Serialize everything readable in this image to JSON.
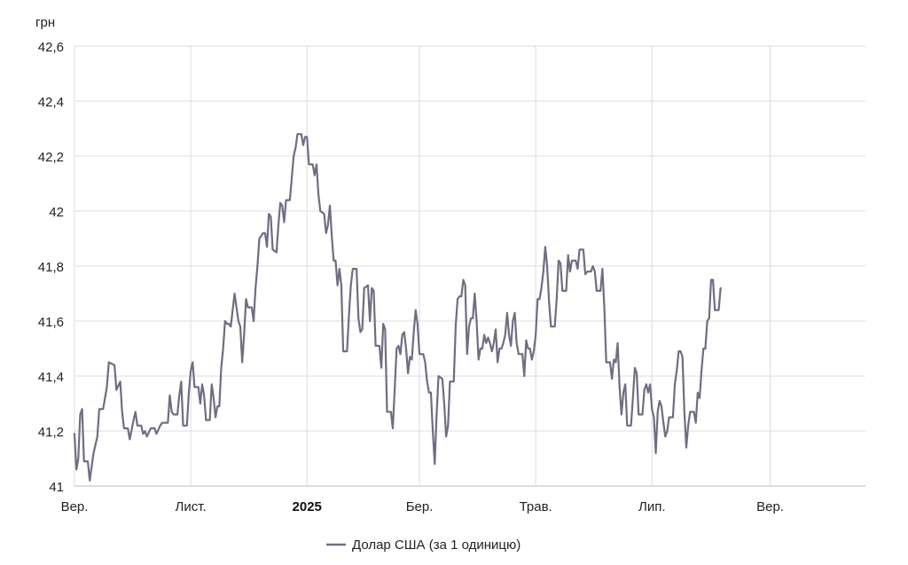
{
  "chart_data": {
    "type": "line",
    "title": "",
    "ylabel": "грн",
    "ylim": [
      41,
      42.6
    ],
    "y_ticks": [
      "41",
      "41,2",
      "41,4",
      "41,6",
      "41,8",
      "42",
      "42,2",
      "42,4",
      "42,6"
    ],
    "y_tick_values": [
      41,
      41.2,
      41.4,
      41.6,
      41.8,
      42,
      42.2,
      42.4,
      42.6
    ],
    "x_ticks": [
      {
        "label": "Вер.",
        "index": 0,
        "bold": false
      },
      {
        "label": "Лист.",
        "index": 61,
        "bold": false
      },
      {
        "label": "2025",
        "index": 122,
        "bold": true
      },
      {
        "label": "Бер.",
        "index": 181,
        "bold": false
      },
      {
        "label": "Трав.",
        "index": 242,
        "bold": false
      },
      {
        "label": "Лип.",
        "index": 303,
        "bold": false
      },
      {
        "label": "Вер.",
        "index": 365,
        "bold": false
      }
    ],
    "x_domain": [
      0,
      415
    ],
    "grid": true,
    "legend_position": "bottom-center",
    "colors": {
      "series": "#6e6e82",
      "grid": "#dcdcdc",
      "axis": "#bdbdbd"
    },
    "series": [
      {
        "name": "Долар США (за 1 одиницю)",
        "points": [
          [
            0,
            41.19
          ],
          [
            1,
            41.06
          ],
          [
            2,
            41.1
          ],
          [
            3,
            41.26
          ],
          [
            4,
            41.28
          ],
          [
            5,
            41.09
          ],
          [
            7,
            41.09
          ],
          [
            8,
            41.02
          ],
          [
            10,
            41.12
          ],
          [
            12,
            41.18
          ],
          [
            13,
            41.28
          ],
          [
            15,
            41.28
          ],
          [
            17,
            41.36
          ],
          [
            18,
            41.45
          ],
          [
            21,
            41.44
          ],
          [
            22,
            41.35
          ],
          [
            24,
            41.38
          ],
          [
            25,
            41.27
          ],
          [
            26,
            41.21
          ],
          [
            28,
            41.21
          ],
          [
            29,
            41.17
          ],
          [
            31,
            41.24
          ],
          [
            32,
            41.27
          ],
          [
            33,
            41.22
          ],
          [
            35,
            41.22
          ],
          [
            36,
            41.19
          ],
          [
            37,
            41.2
          ],
          [
            38,
            41.18
          ],
          [
            40,
            41.21
          ],
          [
            42,
            41.21
          ],
          [
            43,
            41.19
          ],
          [
            45,
            41.22
          ],
          [
            46,
            41.23
          ],
          [
            49,
            41.23
          ],
          [
            50,
            41.33
          ],
          [
            51,
            41.27
          ],
          [
            52,
            41.26
          ],
          [
            54,
            41.26
          ],
          [
            55,
            41.33
          ],
          [
            56,
            41.38
          ],
          [
            57,
            41.22
          ],
          [
            59,
            41.22
          ],
          [
            60,
            41.34
          ],
          [
            61,
            41.42
          ],
          [
            62,
            41.45
          ],
          [
            63,
            41.36
          ],
          [
            65,
            41.36
          ],
          [
            66,
            41.3
          ],
          [
            67,
            41.37
          ],
          [
            68,
            41.33
          ],
          [
            69,
            41.24
          ],
          [
            71,
            41.24
          ],
          [
            72,
            41.37
          ],
          [
            73,
            41.32
          ],
          [
            74,
            41.25
          ],
          [
            75,
            41.29
          ],
          [
            76,
            41.29
          ],
          [
            77,
            41.43
          ],
          [
            78,
            41.5
          ],
          [
            79,
            41.6
          ],
          [
            80,
            41.59
          ],
          [
            81,
            41.59
          ],
          [
            82,
            41.58
          ],
          [
            83,
            41.64
          ],
          [
            84,
            41.7
          ],
          [
            85,
            41.65
          ],
          [
            86,
            41.6
          ],
          [
            87,
            41.58
          ],
          [
            88,
            41.45
          ],
          [
            89,
            41.55
          ],
          [
            90,
            41.68
          ],
          [
            91,
            41.65
          ],
          [
            93,
            41.65
          ],
          [
            94,
            41.6
          ],
          [
            95,
            41.72
          ],
          [
            96,
            41.8
          ],
          [
            97,
            41.9
          ],
          [
            99,
            41.92
          ],
          [
            100,
            41.92
          ],
          [
            101,
            41.87
          ],
          [
            102,
            41.99
          ],
          [
            103,
            41.98
          ],
          [
            104,
            41.86
          ],
          [
            106,
            41.85
          ],
          [
            107,
            41.95
          ],
          [
            108,
            42.03
          ],
          [
            109,
            42.02
          ],
          [
            110,
            41.96
          ],
          [
            111,
            42.04
          ],
          [
            113,
            42.04
          ],
          [
            114,
            42.12
          ],
          [
            115,
            42.2
          ],
          [
            116,
            42.23
          ],
          [
            117,
            42.28
          ],
          [
            119,
            42.28
          ],
          [
            120,
            42.24
          ],
          [
            121,
            42.27
          ],
          [
            122,
            42.27
          ],
          [
            123,
            42.17
          ],
          [
            125,
            42.17
          ],
          [
            126,
            42.13
          ],
          [
            127,
            42.17
          ],
          [
            128,
            42.06
          ],
          [
            129,
            42.0
          ],
          [
            131,
            41.99
          ],
          [
            132,
            41.92
          ],
          [
            133,
            41.95
          ],
          [
            134,
            42.02
          ],
          [
            135,
            41.91
          ],
          [
            136,
            41.82
          ],
          [
            137,
            41.82
          ],
          [
            138,
            41.73
          ],
          [
            139,
            41.79
          ],
          [
            140,
            41.73
          ],
          [
            141,
            41.49
          ],
          [
            143,
            41.49
          ],
          [
            144,
            41.62
          ],
          [
            145,
            41.73
          ],
          [
            146,
            41.79
          ],
          [
            148,
            41.79
          ],
          [
            149,
            41.61
          ],
          [
            150,
            41.56
          ],
          [
            151,
            41.57
          ],
          [
            152,
            41.72
          ],
          [
            154,
            41.73
          ],
          [
            155,
            41.6
          ],
          [
            156,
            41.72
          ],
          [
            157,
            41.71
          ],
          [
            158,
            41.51
          ],
          [
            160,
            41.51
          ],
          [
            161,
            41.43
          ],
          [
            162,
            41.59
          ],
          [
            163,
            41.57
          ],
          [
            164,
            41.27
          ],
          [
            166,
            41.27
          ],
          [
            167,
            41.21
          ],
          [
            168,
            41.35
          ],
          [
            169,
            41.5
          ],
          [
            170,
            41.51
          ],
          [
            171,
            41.48
          ],
          [
            172,
            41.55
          ],
          [
            173,
            41.56
          ],
          [
            174,
            41.5
          ],
          [
            175,
            41.41
          ],
          [
            176,
            41.47
          ],
          [
            177,
            41.46
          ],
          [
            178,
            41.56
          ],
          [
            179,
            41.64
          ],
          [
            180,
            41.59
          ],
          [
            181,
            41.48
          ],
          [
            183,
            41.48
          ],
          [
            184,
            41.45
          ],
          [
            185,
            41.38
          ],
          [
            186,
            41.34
          ],
          [
            187,
            41.34
          ],
          [
            188,
            41.2
          ],
          [
            189,
            41.08
          ],
          [
            190,
            41.26
          ],
          [
            191,
            41.4
          ],
          [
            193,
            41.39
          ],
          [
            194,
            41.3
          ],
          [
            195,
            41.18
          ],
          [
            196,
            41.22
          ],
          [
            197,
            41.38
          ],
          [
            199,
            41.38
          ],
          [
            200,
            41.58
          ],
          [
            201,
            41.68
          ],
          [
            202,
            41.69
          ],
          [
            203,
            41.69
          ],
          [
            204,
            41.75
          ],
          [
            205,
            41.73
          ],
          [
            206,
            41.48
          ],
          [
            207,
            41.58
          ],
          [
            208,
            41.61
          ],
          [
            209,
            41.61
          ],
          [
            210,
            41.7
          ],
          [
            211,
            41.6
          ],
          [
            212,
            41.46
          ],
          [
            213,
            41.5
          ],
          [
            214,
            41.5
          ],
          [
            215,
            41.55
          ],
          [
            216,
            41.52
          ],
          [
            217,
            41.54
          ],
          [
            218,
            41.52
          ],
          [
            219,
            41.49
          ],
          [
            220,
            41.52
          ],
          [
            221,
            41.57
          ],
          [
            222,
            41.45
          ],
          [
            223,
            41.5
          ],
          [
            224,
            41.5
          ],
          [
            225,
            41.52
          ],
          [
            226,
            41.55
          ],
          [
            227,
            41.63
          ],
          [
            228,
            41.55
          ],
          [
            229,
            41.51
          ],
          [
            230,
            41.6
          ],
          [
            231,
            41.63
          ],
          [
            232,
            41.52
          ],
          [
            233,
            41.48
          ],
          [
            235,
            41.48
          ],
          [
            236,
            41.4
          ],
          [
            237,
            41.53
          ],
          [
            238,
            41.5
          ],
          [
            239,
            41.5
          ],
          [
            240,
            41.46
          ],
          [
            241,
            41.49
          ],
          [
            242,
            41.55
          ],
          [
            243,
            41.68
          ],
          [
            244,
            41.68
          ],
          [
            245,
            41.72
          ],
          [
            246,
            41.78
          ],
          [
            247,
            41.87
          ],
          [
            248,
            41.8
          ],
          [
            249,
            41.67
          ],
          [
            250,
            41.58
          ],
          [
            252,
            41.58
          ],
          [
            253,
            41.68
          ],
          [
            254,
            41.82
          ],
          [
            255,
            41.81
          ],
          [
            256,
            41.71
          ],
          [
            258,
            41.71
          ],
          [
            259,
            41.84
          ],
          [
            260,
            41.78
          ],
          [
            261,
            41.82
          ],
          [
            263,
            41.82
          ],
          [
            264,
            41.79
          ],
          [
            265,
            41.86
          ],
          [
            267,
            41.86
          ],
          [
            268,
            41.77
          ],
          [
            269,
            41.78
          ],
          [
            271,
            41.78
          ],
          [
            272,
            41.8
          ],
          [
            273,
            41.78
          ],
          [
            274,
            41.71
          ],
          [
            276,
            41.71
          ],
          [
            277,
            41.79
          ],
          [
            278,
            41.65
          ],
          [
            279,
            41.45
          ],
          [
            281,
            41.45
          ],
          [
            282,
            41.39
          ],
          [
            283,
            41.46
          ],
          [
            284,
            41.45
          ],
          [
            285,
            41.52
          ],
          [
            286,
            41.36
          ],
          [
            287,
            41.26
          ],
          [
            288,
            41.34
          ],
          [
            289,
            41.37
          ],
          [
            290,
            41.22
          ],
          [
            292,
            41.22
          ],
          [
            293,
            41.32
          ],
          [
            294,
            41.43
          ],
          [
            295,
            41.41
          ],
          [
            296,
            41.26
          ],
          [
            298,
            41.26
          ],
          [
            299,
            41.35
          ],
          [
            300,
            41.37
          ],
          [
            301,
            41.34
          ],
          [
            302,
            41.37
          ],
          [
            303,
            41.28
          ],
          [
            304,
            41.25
          ],
          [
            305,
            41.12
          ],
          [
            306,
            41.27
          ],
          [
            307,
            41.31
          ],
          [
            308,
            41.29
          ],
          [
            309,
            41.23
          ],
          [
            310,
            41.18
          ],
          [
            311,
            41.2
          ],
          [
            312,
            41.25
          ],
          [
            314,
            41.25
          ],
          [
            315,
            41.37
          ],
          [
            316,
            41.42
          ],
          [
            317,
            41.49
          ],
          [
            318,
            41.49
          ],
          [
            319,
            41.47
          ],
          [
            320,
            41.27
          ],
          [
            321,
            41.14
          ],
          [
            322,
            41.22
          ],
          [
            323,
            41.27
          ],
          [
            325,
            41.27
          ],
          [
            326,
            41.23
          ],
          [
            327,
            41.34
          ],
          [
            328,
            41.32
          ],
          [
            329,
            41.42
          ],
          [
            330,
            41.5
          ],
          [
            331,
            41.5
          ],
          [
            332,
            41.6
          ],
          [
            333,
            41.61
          ],
          [
            334,
            41.75
          ],
          [
            335,
            41.75
          ],
          [
            336,
            41.64
          ],
          [
            338,
            41.64
          ],
          [
            339,
            41.72
          ]
        ]
      }
    ]
  }
}
